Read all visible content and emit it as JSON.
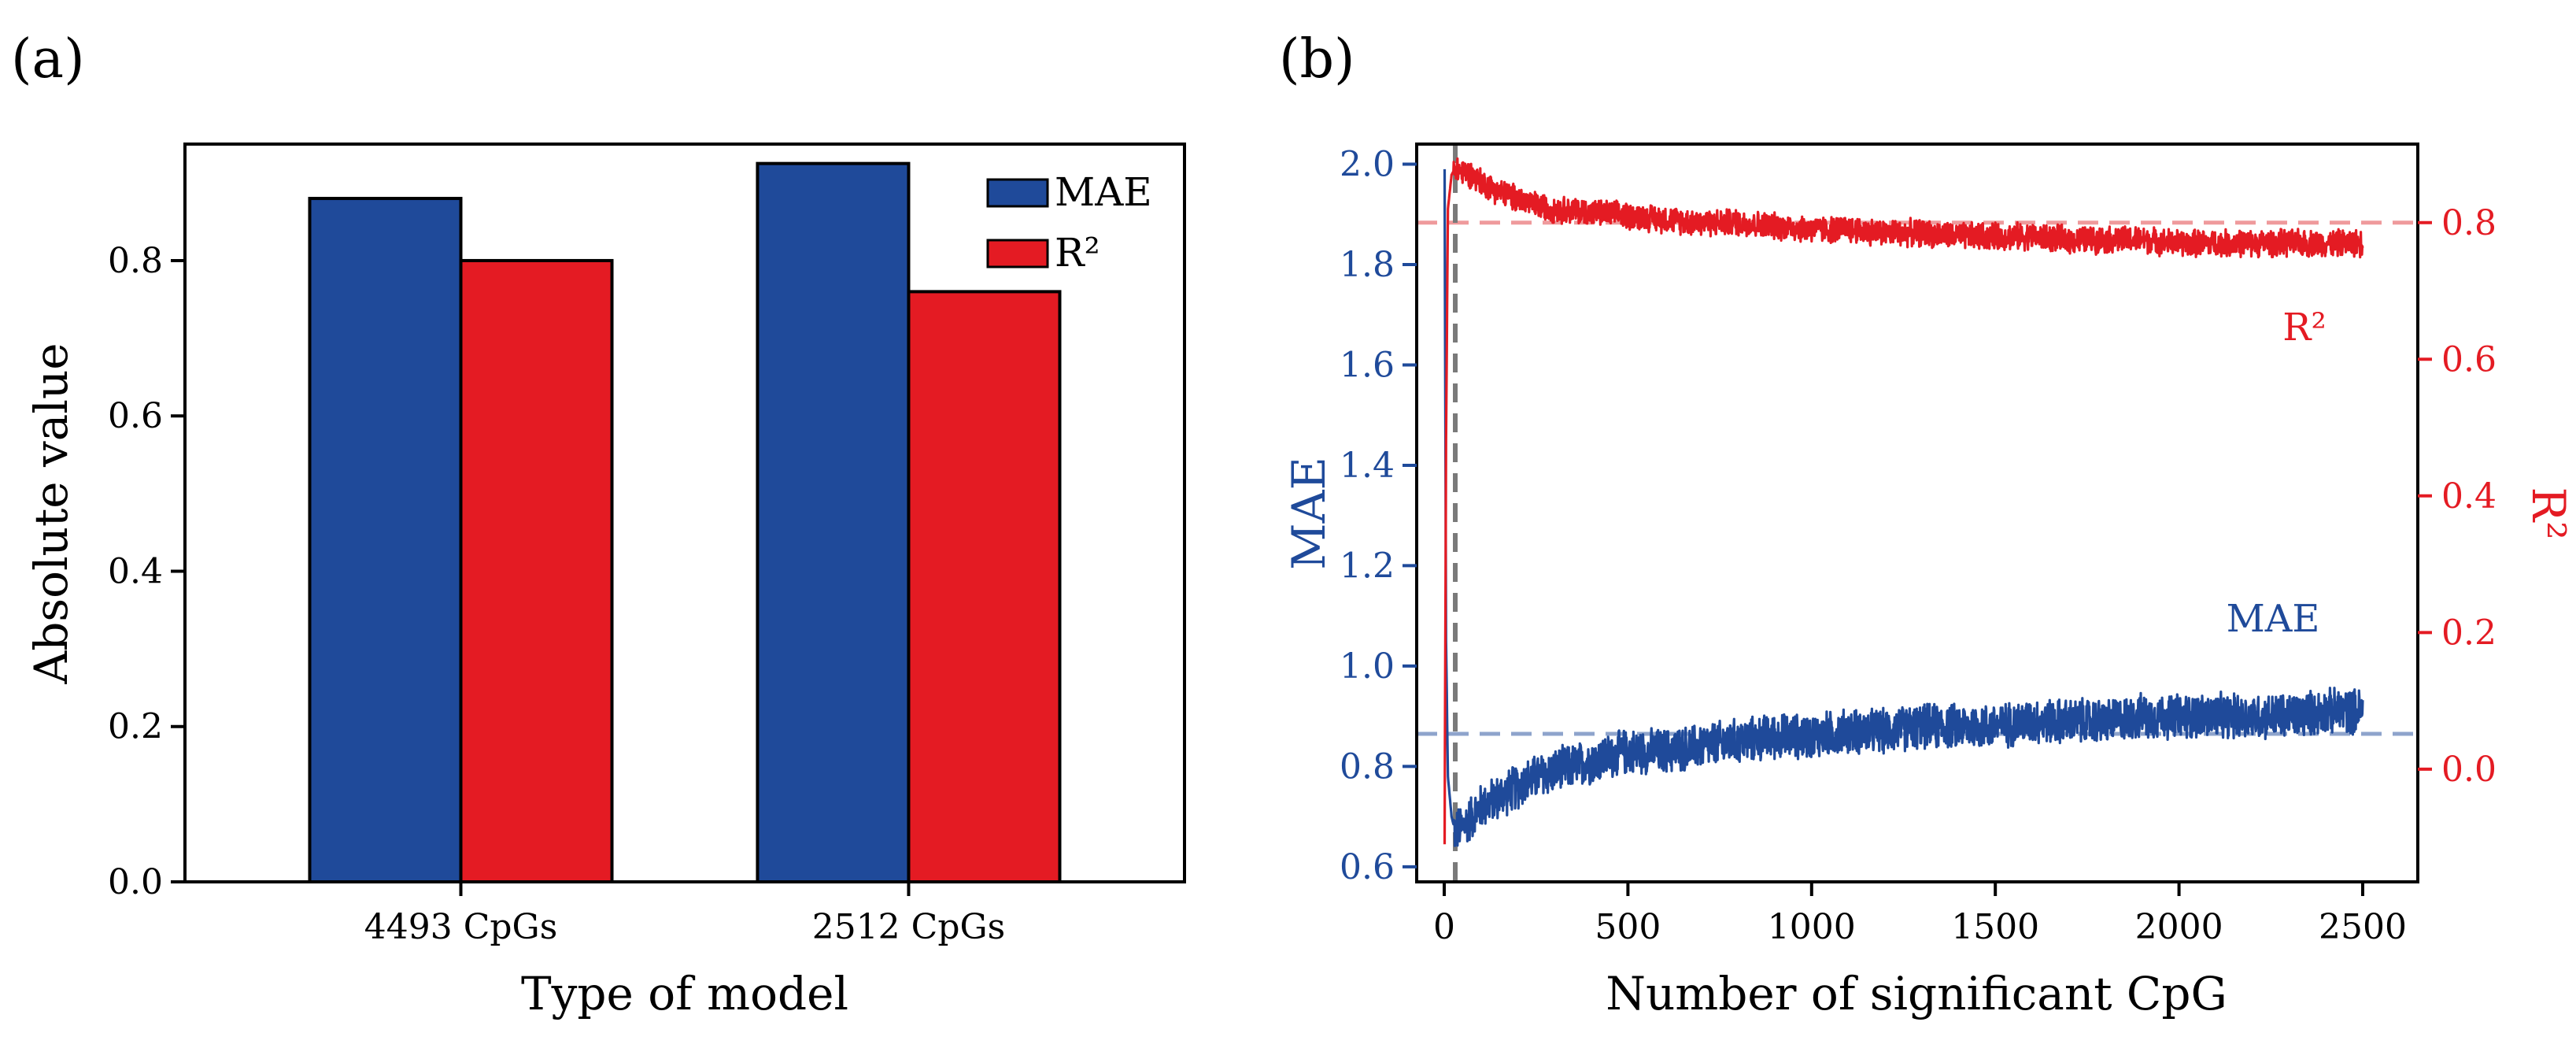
{
  "colors": {
    "mae": "#1f4a9a",
    "r2": "#e41b23",
    "mae_ref": "#8ea4cc",
    "r2_ref": "#ef9a9c",
    "vline": "#7a7a7a",
    "axis": "#000000"
  },
  "chart_data": [
    {
      "panel_label": "(a)",
      "type": "bar",
      "title": "",
      "xlabel": "Type of model",
      "ylabel": "Absolute value",
      "ylim": [
        0,
        0.95
      ],
      "yticks": [
        0.0,
        0.2,
        0.4,
        0.6,
        0.8
      ],
      "ytick_labels": [
        "0.0",
        "0.2",
        "0.4",
        "0.6",
        "0.8"
      ],
      "categories": [
        "4493 CpGs",
        "2512 CpGs"
      ],
      "series": [
        {
          "name": "MAE",
          "values": [
            0.88,
            0.925
          ]
        },
        {
          "name": "R²",
          "values": [
            0.8,
            0.76
          ]
        }
      ],
      "legend": {
        "position": "top-right",
        "entries": [
          "MAE",
          "R²"
        ]
      },
      "grid": false
    },
    {
      "panel_label": "(b)",
      "type": "line",
      "title": "",
      "xlabel": "Number of significant CpG",
      "ylabel": "MAE",
      "ylabel_right": "R²",
      "xlim": [
        -75,
        2650
      ],
      "xticks": [
        0,
        500,
        1000,
        1500,
        2000,
        2500
      ],
      "xtick_labels": [
        "0",
        "500",
        "1000",
        "1500",
        "2000",
        "2500"
      ],
      "ylim": [
        0.57,
        2.04
      ],
      "yticks": [
        0.6,
        0.8,
        1.0,
        1.2,
        1.4,
        1.6,
        1.8,
        2.0
      ],
      "ytick_labels": [
        "0.6",
        "0.8",
        "1.0",
        "1.2",
        "1.4",
        "1.6",
        "1.8",
        "2.0"
      ],
      "ylim_right": [
        -0.165,
        0.915
      ],
      "yticks_right": [
        0.0,
        0.2,
        0.4,
        0.6,
        0.8
      ],
      "ytick_labels_right": [
        "0.0",
        "0.2",
        "0.4",
        "0.6",
        "0.8"
      ],
      "series": [
        {
          "name": "MAE",
          "axis": "left",
          "label": "MAE",
          "x": [
            1,
            5,
            10,
            20,
            30,
            50,
            75,
            100,
            150,
            200,
            250,
            300,
            400,
            500,
            600,
            700,
            800,
            900,
            1000,
            1100,
            1200,
            1300,
            1400,
            1500,
            1600,
            1700,
            1800,
            1900,
            2000,
            2100,
            2200,
            2300,
            2400,
            2500
          ],
          "values": [
            1.99,
            1.05,
            0.78,
            0.7,
            0.67,
            0.68,
            0.7,
            0.72,
            0.74,
            0.76,
            0.78,
            0.79,
            0.81,
            0.83,
            0.83,
            0.84,
            0.85,
            0.86,
            0.86,
            0.87,
            0.87,
            0.88,
            0.88,
            0.88,
            0.89,
            0.89,
            0.89,
            0.9,
            0.9,
            0.9,
            0.9,
            0.9,
            0.91,
            0.91
          ]
        },
        {
          "name": "R²",
          "axis": "right",
          "label": "R²",
          "x": [
            1,
            5,
            10,
            20,
            30,
            50,
            75,
            100,
            150,
            200,
            250,
            300,
            400,
            500,
            600,
            700,
            800,
            900,
            1000,
            1100,
            1200,
            1300,
            1400,
            1500,
            1600,
            1700,
            1800,
            1900,
            2000,
            2100,
            2200,
            2300,
            2400,
            2500
          ],
          "values": [
            -0.11,
            0.48,
            0.82,
            0.87,
            0.88,
            0.875,
            0.87,
            0.86,
            0.845,
            0.835,
            0.825,
            0.82,
            0.815,
            0.81,
            0.805,
            0.8,
            0.8,
            0.795,
            0.79,
            0.79,
            0.785,
            0.785,
            0.78,
            0.78,
            0.78,
            0.775,
            0.775,
            0.775,
            0.77,
            0.77,
            0.77,
            0.77,
            0.77,
            0.77
          ]
        }
      ],
      "reference_lines": [
        {
          "axis": "left",
          "orientation": "horizontal",
          "value": 0.865,
          "series": "MAE"
        },
        {
          "axis": "right",
          "orientation": "horizontal",
          "value": 0.8,
          "series": "R²"
        },
        {
          "orientation": "vertical",
          "value": 30
        }
      ],
      "noise_amplitude": {
        "MAE": 0.05,
        "R²": 0.022
      },
      "grid": false
    }
  ]
}
